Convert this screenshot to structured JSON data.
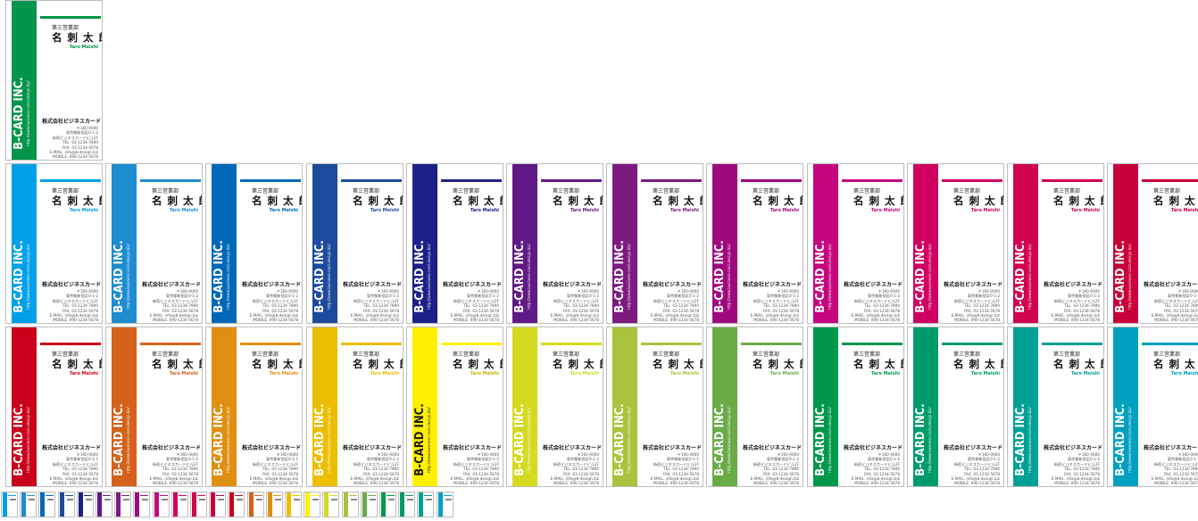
{
  "card_text": {
    "brand": "B-CARD INC.",
    "brand_url": "http://www.business-card.design.biz/",
    "department": "第三営業部",
    "name": "名 刺 太 郎",
    "romaji": "Taro Meishi",
    "company": "株式会社ビジネスカード",
    "address_lines": [
      "〒160-0000",
      "東京都新宿区0-1-2",
      "新宿ビジネスカードビル2F",
      "TEL. 03-1234-7890",
      "FAX. 03-1234-5678",
      "E-MAIL. info@b-design.biz",
      "MOBILE. 090-1234-5678"
    ]
  },
  "card_colors": {
    "featured": "#00954a",
    "row1": [
      "#00a0e9",
      "#1e8cd0",
      "#0068b7",
      "#1d4a9c",
      "#1d2087",
      "#601986",
      "#7d1a80",
      "#a0087e",
      "#c4077f",
      "#cf005f",
      "#d0044f",
      "#c9003a"
    ],
    "row2": [
      "#c9001a",
      "#d4621a",
      "#df8f12",
      "#ecbe00",
      "#fff000",
      "#d4da20",
      "#a6c43c",
      "#6aab48",
      "#00984a",
      "#009b6b",
      "#00a096",
      "#00a0c0"
    ]
  },
  "thumbnail_colors": [
    "#00a0e9",
    "#1e8cd0",
    "#0068b7",
    "#1d4a9c",
    "#1d2087",
    "#601986",
    "#7d1a80",
    "#a0087e",
    "#c4077f",
    "#cf005f",
    "#d0044f",
    "#c9003a",
    "#c9001a",
    "#d4621a",
    "#df8f12",
    "#ecbe00",
    "#fff000",
    "#d4da20",
    "#a6c43c",
    "#6aab48",
    "#00984a",
    "#009b6b",
    "#00a096",
    "#00a0c0"
  ]
}
